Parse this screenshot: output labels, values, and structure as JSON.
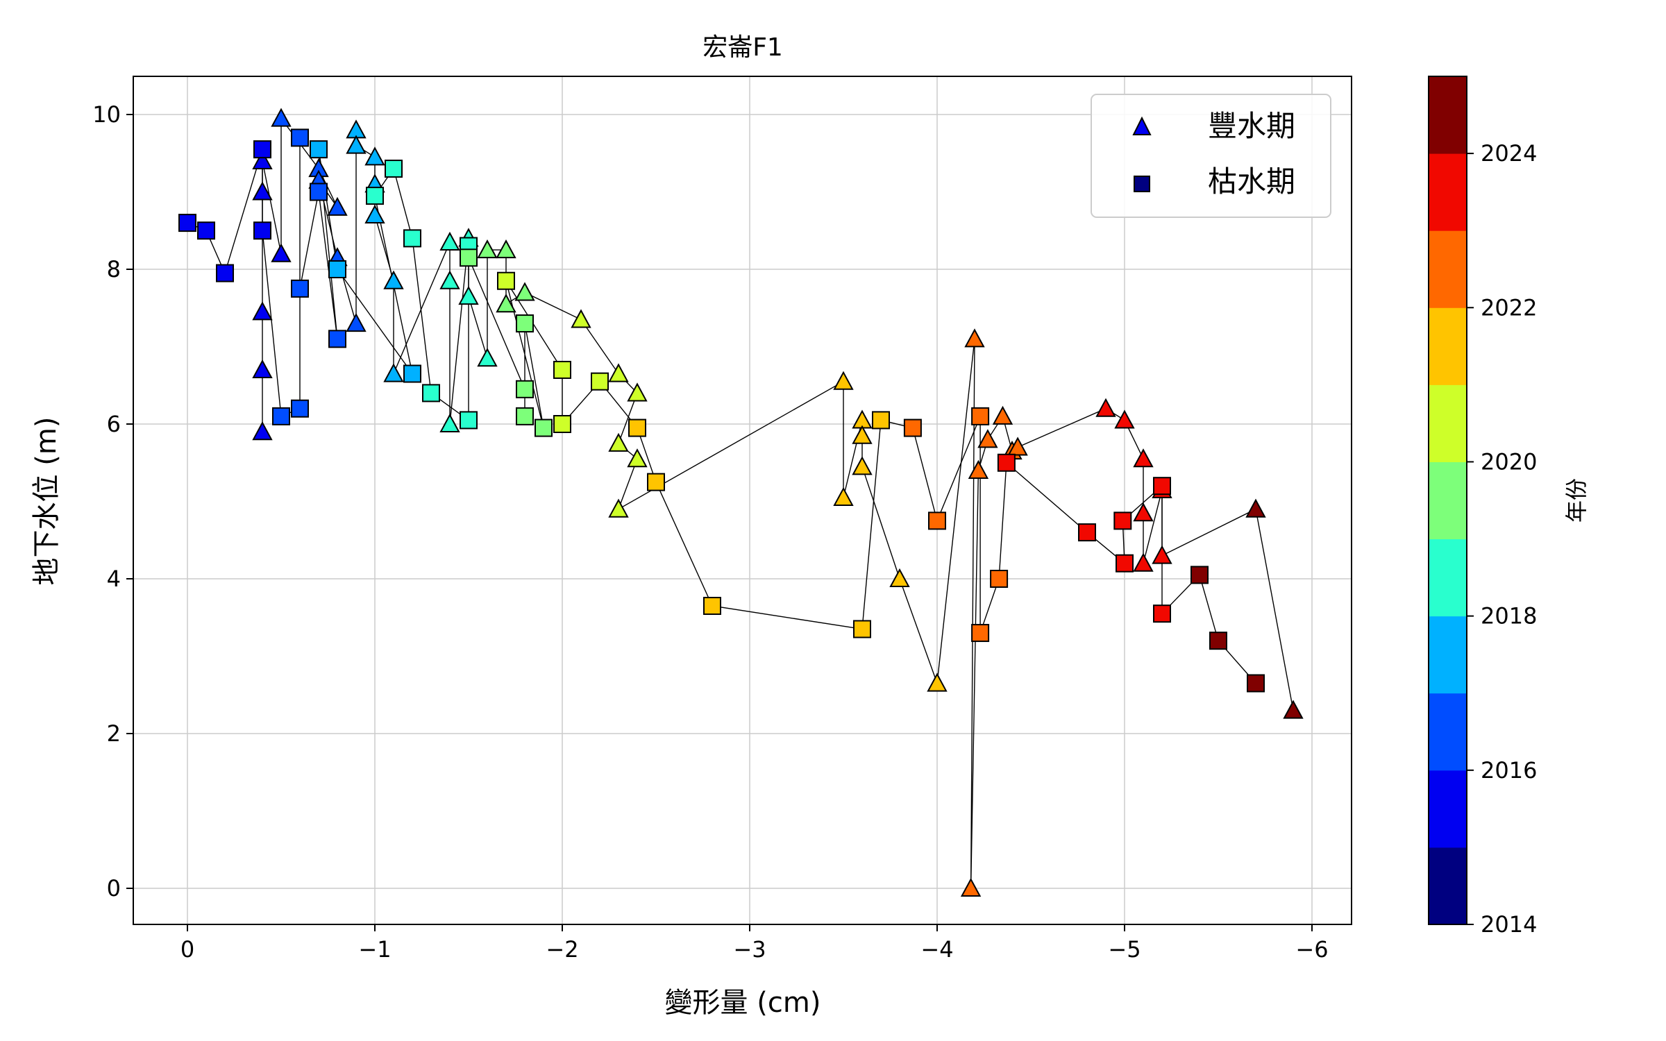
{
  "chart_data": {
    "type": "scatter",
    "title": "宏崙F1",
    "xlabel": "變形量 (cm)",
    "ylabel": "地下水位 (m)",
    "xlim": [
      0.3,
      -6.2
    ],
    "ylim": [
      -0.5,
      10.45
    ],
    "x_ticks": [
      0,
      -1,
      -2,
      -3,
      -4,
      -5,
      -6
    ],
    "x_tick_labels": [
      "0",
      "−1",
      "−2",
      "−3",
      "−4",
      "−5",
      "−6"
    ],
    "y_ticks": [
      0,
      2,
      4,
      6,
      8,
      10
    ],
    "y_tick_labels": [
      "0",
      "2",
      "4",
      "6",
      "8",
      "10"
    ],
    "grid": true,
    "legend_position": "top-right",
    "colorbar": {
      "label": "年份",
      "range": [
        2014,
        2025
      ],
      "ticks": [
        2014,
        2016,
        2018,
        2020,
        2022,
        2024
      ],
      "tick_labels": [
        "2014",
        "2016",
        "2018",
        "2020",
        "2022",
        "2024"
      ],
      "colors": [
        "#000080",
        "#0000f1",
        "#004dff",
        "#00b1ff",
        "#29ffce",
        "#7dff7a",
        "#ceff29",
        "#ffc400",
        "#ff6800",
        "#f10800",
        "#800000"
      ]
    },
    "series": [
      {
        "name": "豐水期",
        "marker": "triangle",
        "points": [
          {
            "x": -0.4,
            "y": 6.7,
            "year": 2015
          },
          {
            "x": -0.4,
            "y": 5.9,
            "year": 2015
          },
          {
            "x": -0.4,
            "y": 7.45,
            "year": 2015
          },
          {
            "x": -0.4,
            "y": 9.0,
            "year": 2015
          },
          {
            "x": -0.4,
            "y": 9.4,
            "year": 2015
          },
          {
            "x": -0.5,
            "y": 8.2,
            "year": 2015
          },
          {
            "x": -0.5,
            "y": 9.95,
            "year": 2016
          },
          {
            "x": -0.7,
            "y": 9.3,
            "year": 2016
          },
          {
            "x": -0.8,
            "y": 8.8,
            "year": 2016
          },
          {
            "x": -0.7,
            "y": 9.15,
            "year": 2016
          },
          {
            "x": -0.8,
            "y": 8.15,
            "year": 2016
          },
          {
            "x": -0.9,
            "y": 7.3,
            "year": 2016
          },
          {
            "x": -0.9,
            "y": 9.8,
            "year": 2017
          },
          {
            "x": -0.9,
            "y": 9.6,
            "year": 2017
          },
          {
            "x": -1.0,
            "y": 9.45,
            "year": 2017
          },
          {
            "x": -1.0,
            "y": 9.1,
            "year": 2017
          },
          {
            "x": -1.0,
            "y": 8.7,
            "year": 2017
          },
          {
            "x": -1.1,
            "y": 7.85,
            "year": 2017
          },
          {
            "x": -1.1,
            "y": 6.65,
            "year": 2017
          },
          {
            "x": -1.4,
            "y": 8.35,
            "year": 2018
          },
          {
            "x": -1.4,
            "y": 7.85,
            "year": 2018
          },
          {
            "x": -1.4,
            "y": 6.0,
            "year": 2018
          },
          {
            "x": -1.5,
            "y": 8.4,
            "year": 2018
          },
          {
            "x": -1.5,
            "y": 7.65,
            "year": 2018
          },
          {
            "x": -1.6,
            "y": 6.85,
            "year": 2018
          },
          {
            "x": -1.6,
            "y": 8.25,
            "year": 2019
          },
          {
            "x": -1.7,
            "y": 8.25,
            "year": 2019
          },
          {
            "x": -1.7,
            "y": 7.55,
            "year": 2019
          },
          {
            "x": -1.8,
            "y": 7.7,
            "year": 2019
          },
          {
            "x": -2.1,
            "y": 7.35,
            "year": 2020
          },
          {
            "x": -2.3,
            "y": 6.65,
            "year": 2020
          },
          {
            "x": -2.4,
            "y": 6.4,
            "year": 2020
          },
          {
            "x": -2.3,
            "y": 5.75,
            "year": 2020
          },
          {
            "x": -2.4,
            "y": 5.55,
            "year": 2020
          },
          {
            "x": -2.3,
            "y": 4.9,
            "year": 2020
          },
          {
            "x": -3.5,
            "y": 6.55,
            "year": 2021
          },
          {
            "x": -3.5,
            "y": 5.05,
            "year": 2021
          },
          {
            "x": -3.6,
            "y": 6.05,
            "year": 2021
          },
          {
            "x": -3.6,
            "y": 5.85,
            "year": 2021
          },
          {
            "x": -3.6,
            "y": 5.45,
            "year": 2021
          },
          {
            "x": -3.8,
            "y": 4.0,
            "year": 2021
          },
          {
            "x": -4.0,
            "y": 2.65,
            "year": 2021
          },
          {
            "x": -4.2,
            "y": 7.1,
            "year": 2022
          },
          {
            "x": -4.18,
            "y": 0.0,
            "year": 2022
          },
          {
            "x": -4.22,
            "y": 5.4,
            "year": 2022
          },
          {
            "x": -4.27,
            "y": 5.8,
            "year": 2022
          },
          {
            "x": -4.35,
            "y": 6.1,
            "year": 2022
          },
          {
            "x": -4.4,
            "y": 5.65,
            "year": 2022
          },
          {
            "x": -4.43,
            "y": 5.7,
            "year": 2022
          },
          {
            "x": -4.9,
            "y": 6.2,
            "year": 2023
          },
          {
            "x": -5.0,
            "y": 6.05,
            "year": 2023
          },
          {
            "x": -5.1,
            "y": 5.55,
            "year": 2023
          },
          {
            "x": -5.1,
            "y": 4.85,
            "year": 2023
          },
          {
            "x": -5.1,
            "y": 4.2,
            "year": 2023
          },
          {
            "x": -5.2,
            "y": 5.15,
            "year": 2023
          },
          {
            "x": -5.2,
            "y": 4.3,
            "year": 2023
          },
          {
            "x": -5.7,
            "y": 4.9,
            "year": 2024
          },
          {
            "x": -5.9,
            "y": 2.3,
            "year": 2024
          }
        ]
      },
      {
        "name": "枯水期",
        "marker": "square",
        "points": [
          {
            "x": 0.0,
            "y": 8.6,
            "year": 2015
          },
          {
            "x": -0.1,
            "y": 8.5,
            "year": 2015
          },
          {
            "x": -0.2,
            "y": 7.95,
            "year": 2015
          },
          {
            "x": -0.4,
            "y": 9.55,
            "year": 2015
          },
          {
            "x": -0.4,
            "y": 8.5,
            "year": 2015
          },
          {
            "x": -0.5,
            "y": 6.1,
            "year": 2016
          },
          {
            "x": -0.6,
            "y": 6.2,
            "year": 2016
          },
          {
            "x": -0.6,
            "y": 9.7,
            "year": 2016
          },
          {
            "x": -0.6,
            "y": 7.75,
            "year": 2016
          },
          {
            "x": -0.7,
            "y": 9.0,
            "year": 2016
          },
          {
            "x": -0.8,
            "y": 7.1,
            "year": 2016
          },
          {
            "x": -0.7,
            "y": 9.55,
            "year": 2017
          },
          {
            "x": -0.8,
            "y": 8.0,
            "year": 2017
          },
          {
            "x": -1.2,
            "y": 6.65,
            "year": 2017
          },
          {
            "x": -1.0,
            "y": 8.95,
            "year": 2018
          },
          {
            "x": -1.1,
            "y": 9.3,
            "year": 2018
          },
          {
            "x": -1.2,
            "y": 8.4,
            "year": 2018
          },
          {
            "x": -1.3,
            "y": 6.4,
            "year": 2018
          },
          {
            "x": -1.5,
            "y": 6.05,
            "year": 2018
          },
          {
            "x": -1.5,
            "y": 8.3,
            "year": 2018
          },
          {
            "x": -1.5,
            "y": 8.15,
            "year": 2019
          },
          {
            "x": -1.8,
            "y": 6.45,
            "year": 2019
          },
          {
            "x": -1.8,
            "y": 6.1,
            "year": 2019
          },
          {
            "x": -1.8,
            "y": 7.3,
            "year": 2019
          },
          {
            "x": -1.9,
            "y": 5.95,
            "year": 2019
          },
          {
            "x": -1.7,
            "y": 7.85,
            "year": 2020
          },
          {
            "x": -2.0,
            "y": 6.7,
            "year": 2020
          },
          {
            "x": -2.0,
            "y": 6.0,
            "year": 2020
          },
          {
            "x": -2.2,
            "y": 6.55,
            "year": 2020
          },
          {
            "x": -2.4,
            "y": 5.95,
            "year": 2021
          },
          {
            "x": -2.5,
            "y": 5.25,
            "year": 2021
          },
          {
            "x": -2.8,
            "y": 3.65,
            "year": 2021
          },
          {
            "x": -3.6,
            "y": 3.35,
            "year": 2021
          },
          {
            "x": -3.7,
            "y": 6.05,
            "year": 2021
          },
          {
            "x": -3.87,
            "y": 5.95,
            "year": 2022
          },
          {
            "x": -4.0,
            "y": 4.75,
            "year": 2022
          },
          {
            "x": -4.23,
            "y": 6.1,
            "year": 2022
          },
          {
            "x": -4.23,
            "y": 3.3,
            "year": 2022
          },
          {
            "x": -4.33,
            "y": 4.0,
            "year": 2022
          },
          {
            "x": -4.37,
            "y": 5.5,
            "year": 2023
          },
          {
            "x": -4.8,
            "y": 4.6,
            "year": 2023
          },
          {
            "x": -5.0,
            "y": 4.2,
            "year": 2023
          },
          {
            "x": -4.99,
            "y": 4.75,
            "year": 2023
          },
          {
            "x": -5.2,
            "y": 5.2,
            "year": 2023
          },
          {
            "x": -5.2,
            "y": 3.55,
            "year": 2023
          },
          {
            "x": -5.4,
            "y": 4.05,
            "year": 2024
          },
          {
            "x": -5.5,
            "y": 3.2,
            "year": 2024
          },
          {
            "x": -5.7,
            "y": 2.65,
            "year": 2024
          }
        ]
      }
    ]
  }
}
